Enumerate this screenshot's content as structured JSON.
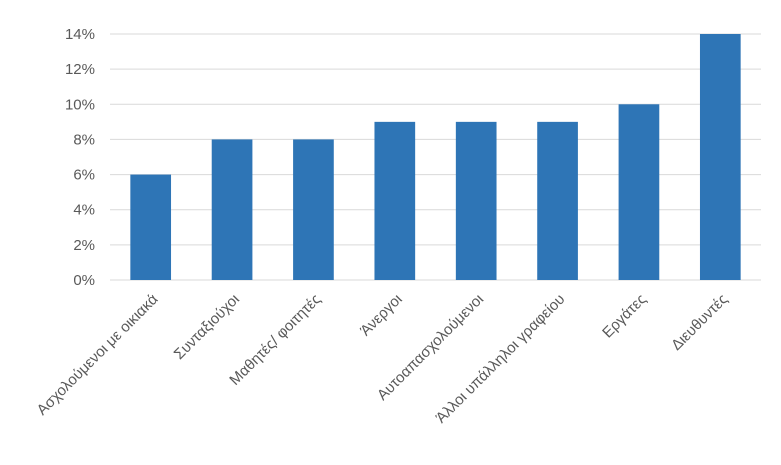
{
  "chart_data": {
    "type": "bar",
    "categories": [
      "Ασχολούμενοι με οικιακά",
      "Συνταξιούχοι",
      "Μαθητές/ φοιτητές",
      "Άνεργοι",
      "Αυτοαπασχολούμενοι",
      "Άλλοι υπάλληλοι γραφείου",
      "Εργάτες",
      "Διευθυντές"
    ],
    "values": [
      6,
      8,
      8,
      9,
      9,
      9,
      10,
      14
    ],
    "title": "",
    "xlabel": "",
    "ylabel": "",
    "ylim": [
      0,
      14
    ],
    "yticks": [
      0,
      2,
      4,
      6,
      8,
      10,
      12,
      14
    ],
    "ytick_labels": [
      "0%",
      "2%",
      "4%",
      "6%",
      "8%",
      "10%",
      "12%",
      "14%"
    ],
    "grid": "horizontal",
    "legend": "none",
    "bar_color": "#2e75b6",
    "grid_color": "#d9d9d9"
  }
}
